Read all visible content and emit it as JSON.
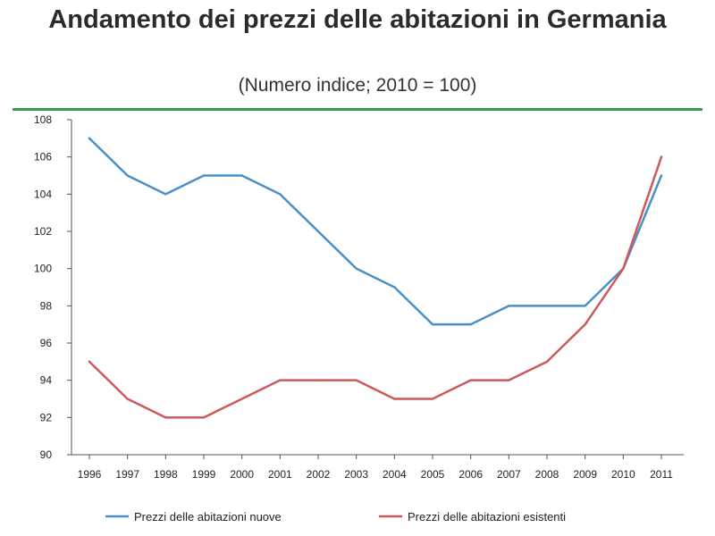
{
  "chart_data": {
    "type": "line",
    "title": "Andamento dei prezzi delle abitazioni in Germania",
    "subtitle": "(Numero indice; 2010 = 100)",
    "x": [
      "1996",
      "1997",
      "1998",
      "1999",
      "2000",
      "2001",
      "2002",
      "2003",
      "2004",
      "2005",
      "2006",
      "2007",
      "2008",
      "2009",
      "2010",
      "2011"
    ],
    "ylim": [
      90,
      108
    ],
    "yticks": [
      90,
      92,
      94,
      96,
      98,
      100,
      102,
      104,
      106,
      108
    ],
    "grid": false,
    "legend_position": "bottom",
    "series": [
      {
        "name": "Prezzi delle abitazioni nuove",
        "color": "#4a90c8",
        "values": [
          107,
          105,
          104,
          105,
          105,
          104,
          102,
          100,
          99,
          97,
          97,
          98,
          98,
          98,
          100,
          105
        ]
      },
      {
        "name": "Prezzi delle abitazioni esistenti",
        "color": "#cc5a5a",
        "values": [
          95,
          93,
          92,
          92,
          93,
          94,
          94,
          94,
          93,
          93,
          94,
          94,
          95,
          97,
          100,
          106
        ]
      }
    ]
  },
  "colors": {
    "rule": "#3a9a45",
    "axis": "#555555"
  }
}
